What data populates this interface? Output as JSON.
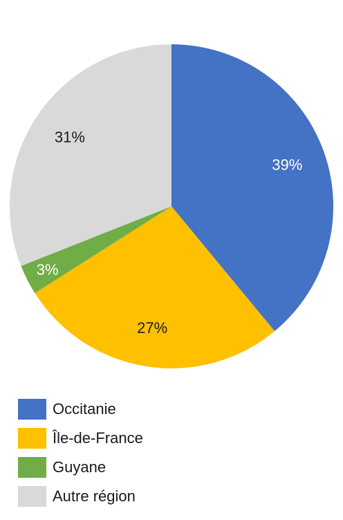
{
  "chart_data": {
    "type": "pie",
    "title": "",
    "slices": [
      {
        "name": "Occitanie",
        "value": 39,
        "label": "39%",
        "color": "#4472C4",
        "label_color": "#ffffff"
      },
      {
        "name": "Île-de-France",
        "value": 27,
        "label": "27%",
        "color": "#FFC000",
        "label_color": "#1a1a1a"
      },
      {
        "name": "Guyane",
        "value": 3,
        "label": "3%",
        "color": "#70AD47",
        "label_color": "#ffffff"
      },
      {
        "name": "Autre région",
        "value": 31,
        "label": "31%",
        "color": "#D9D9D9",
        "label_color": "#1a1a1a"
      }
    ],
    "legend_position": "bottom"
  },
  "legend": {
    "items": [
      {
        "label": "Occitanie",
        "color": "#4472C4"
      },
      {
        "label": "Île-de-France",
        "color": "#FFC000"
      },
      {
        "label": "Guyane",
        "color": "#70AD47"
      },
      {
        "label": "Autre région",
        "color": "#D9D9D9"
      }
    ]
  }
}
